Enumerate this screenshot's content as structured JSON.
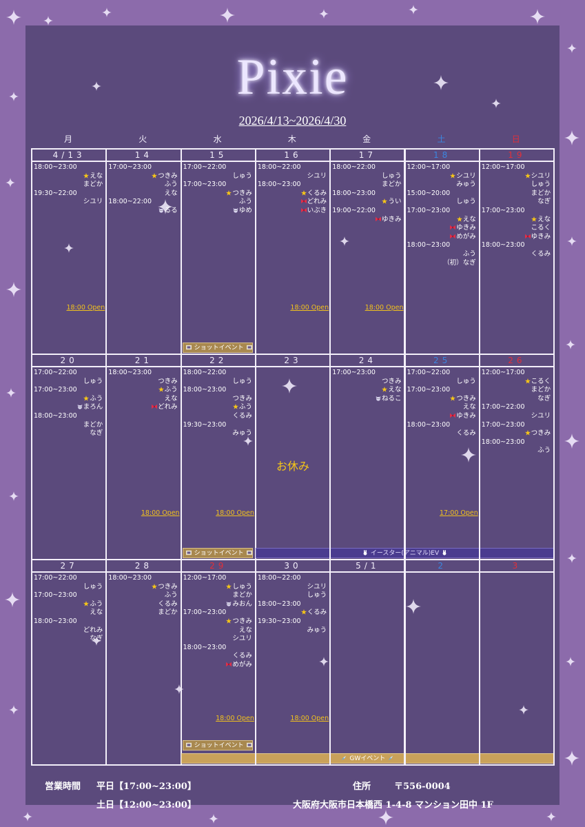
{
  "header": {
    "title": "Pixie",
    "period": "2026/4/13~2026/4/30"
  },
  "weekdays": [
    {
      "label": "月"
    },
    {
      "label": "火"
    },
    {
      "label": "水"
    },
    {
      "label": "木"
    },
    {
      "label": "金"
    },
    {
      "label": "土",
      "color": "#3b86e0"
    },
    {
      "label": "日",
      "color": "#e0303a"
    }
  ],
  "weeks": [
    {
      "days": [
        {
          "label": "4/13",
          "shifts": [
            {
              "time": "18:00~23:00",
              "staff": [
                {
                  "name": "えな",
                  "icon": "star"
                },
                {
                  "name": "まどか"
                }
              ]
            },
            {
              "time": "19:30~22:00",
              "staff": [
                {
                  "name": "シユリ"
                }
              ]
            }
          ],
          "open": "18:00 Open"
        },
        {
          "label": "14",
          "shifts": [
            {
              "time": "17:00~23:00",
              "staff": [
                {
                  "name": "つきみ",
                  "icon": "star"
                },
                {
                  "name": "ふう"
                },
                {
                  "name": "えな"
                }
              ]
            },
            {
              "time": "18:00~22:00",
              "staff": [
                {
                  "name": "るる",
                  "icon": "cat"
                }
              ]
            }
          ]
        },
        {
          "label": "15",
          "shifts": [
            {
              "time": "17:00~22:00",
              "staff": [
                {
                  "name": "しゅう"
                }
              ]
            },
            {
              "time": "17:00~23:00",
              "staff": [
                {
                  "name": "つきみ",
                  "icon": "star"
                },
                {
                  "name": "ふう"
                },
                {
                  "name": "ゆめ",
                  "icon": "cat"
                }
              ]
            }
          ],
          "event": {
            "label": "ショットイベント",
            "style": "shot"
          }
        },
        {
          "label": "16",
          "shifts": [
            {
              "time": "18:00~22:00",
              "staff": [
                {
                  "name": "シユリ"
                }
              ]
            },
            {
              "time": "18:00~23:00",
              "staff": [
                {
                  "name": "くるみ",
                  "icon": "star"
                },
                {
                  "name": "どれみ",
                  "icon": "ribbon"
                },
                {
                  "name": "いぶき",
                  "icon": "ribbon"
                }
              ]
            }
          ],
          "open": "18:00 Open"
        },
        {
          "label": "17",
          "shifts": [
            {
              "time": "18:00~22:00",
              "staff": [
                {
                  "name": "しゅう"
                },
                {
                  "name": "まどか"
                }
              ]
            },
            {
              "time": "18:00~23:00",
              "staff": [
                {
                  "name": "うい",
                  "icon": "star"
                }
              ]
            },
            {
              "time": "19:00~22:00",
              "staff": [
                {
                  "name": "ゆきみ",
                  "icon": "ribbon"
                }
              ]
            }
          ],
          "open": "18:00 Open"
        },
        {
          "label": "18",
          "color": "#3b86e0",
          "shifts": [
            {
              "time": "12:00~17:00",
              "staff": [
                {
                  "name": "シユリ",
                  "icon": "star"
                },
                {
                  "name": "みゅう"
                }
              ]
            },
            {
              "time": "15:00~20:00",
              "staff": [
                {
                  "name": "しゅう"
                }
              ]
            },
            {
              "time": "17:00~23:00",
              "staff": [
                {
                  "name": "えな",
                  "icon": "star"
                },
                {
                  "name": "ゆきみ",
                  "icon": "ribbon"
                },
                {
                  "name": "めがみ",
                  "icon": "ribbon"
                }
              ]
            },
            {
              "time": "18:00~23:00",
              "staff": [
                {
                  "name": "ふう"
                },
                {
                  "name": "（初）なぎ"
                }
              ]
            }
          ]
        },
        {
          "label": "19",
          "color": "#e0303a",
          "shifts": [
            {
              "time": "12:00~17:00",
              "staff": [
                {
                  "name": "シユリ",
                  "icon": "star"
                },
                {
                  "name": "しゅう"
                },
                {
                  "name": "まどか"
                },
                {
                  "name": "なぎ"
                }
              ]
            },
            {
              "time": "17:00~23:00",
              "staff": [
                {
                  "name": "えな",
                  "icon": "star"
                },
                {
                  "name": "こるく"
                },
                {
                  "name": "ゆきみ",
                  "icon": "ribbon"
                }
              ]
            },
            {
              "time": "18:00~23:00",
              "staff": [
                {
                  "name": "くるみ"
                }
              ]
            }
          ]
        }
      ]
    },
    {
      "days": [
        {
          "label": "20",
          "shifts": [
            {
              "time": "17:00~22:00",
              "staff": [
                {
                  "name": "しゅう"
                }
              ]
            },
            {
              "time": "17:00~23:00",
              "staff": [
                {
                  "name": "ふう",
                  "icon": "star"
                },
                {
                  "name": "まろん",
                  "icon": "cat"
                }
              ]
            },
            {
              "time": "18:00~23:00",
              "staff": [
                {
                  "name": "まどか"
                },
                {
                  "name": "なぎ"
                }
              ]
            }
          ]
        },
        {
          "label": "21",
          "shifts": [
            {
              "time": "18:00~23:00",
              "staff": [
                {
                  "name": "つきみ"
                },
                {
                  "name": "ふう",
                  "icon": "star"
                },
                {
                  "name": "えな"
                },
                {
                  "name": "どれみ",
                  "icon": "ribbon"
                }
              ]
            }
          ],
          "open": "18:00 Open"
        },
        {
          "label": "22",
          "shifts": [
            {
              "time": "18:00~22:00",
              "staff": [
                {
                  "name": "しゅう"
                }
              ]
            },
            {
              "time": "18:00~23:00",
              "staff": [
                {
                  "name": "つきみ"
                },
                {
                  "name": "ふう",
                  "icon": "star"
                },
                {
                  "name": "くるみ"
                }
              ]
            },
            {
              "time": "19:30~23:00",
              "staff": [
                {
                  "name": "みゅう"
                }
              ]
            }
          ],
          "open": "18:00 Open",
          "event": {
            "label": "ショットイベント",
            "style": "shot"
          }
        },
        {
          "label": "23",
          "closed": "お休み",
          "event": {
            "label": "イースター(アニマル)EV",
            "style": "easter",
            "to_week_end": true
          }
        },
        {
          "label": "24",
          "shifts": [
            {
              "time": "17:00~23:00",
              "staff": [
                {
                  "name": "つきみ"
                },
                {
                  "name": "えな",
                  "icon": "star"
                },
                {
                  "name": "ねるこ",
                  "icon": "cat"
                }
              ]
            }
          ]
        },
        {
          "label": "25",
          "color": "#3b86e0",
          "shifts": [
            {
              "time": "17:00~22:00",
              "staff": [
                {
                  "name": "しゅう"
                }
              ]
            },
            {
              "time": "17:00~23:00",
              "staff": [
                {
                  "name": "つきみ",
                  "icon": "star"
                },
                {
                  "name": "えな"
                },
                {
                  "name": "ゆきみ",
                  "icon": "ribbon"
                }
              ]
            },
            {
              "time": "18:00~23:00",
              "staff": [
                {
                  "name": "くるみ"
                }
              ]
            }
          ],
          "open": "17:00 Open"
        },
        {
          "label": "26",
          "color": "#e0303a",
          "shifts": [
            {
              "time": "12:00~17:00",
              "staff": [
                {
                  "name": "こるく",
                  "icon": "star"
                },
                {
                  "name": "まどか"
                },
                {
                  "name": "なぎ"
                }
              ]
            },
            {
              "time": "17:00~22:00",
              "staff": [
                {
                  "name": "シユリ"
                }
              ]
            },
            {
              "time": "17:00~23:00",
              "staff": [
                {
                  "name": "つきみ",
                  "icon": "star"
                }
              ]
            },
            {
              "time": "18:00~23:00",
              "staff": [
                {
                  "name": "ふう"
                }
              ]
            }
          ]
        }
      ]
    },
    {
      "days": [
        {
          "label": "27",
          "shifts": [
            {
              "time": "17:00~22:00",
              "staff": [
                {
                  "name": "しゅう"
                }
              ]
            },
            {
              "time": "17:00~23:00",
              "staff": [
                {
                  "name": "ふう",
                  "icon": "star"
                },
                {
                  "name": "えな"
                }
              ]
            },
            {
              "time": "18:00~23:00",
              "staff": [
                {
                  "name": "どれみ"
                },
                {
                  "name": "なぎ"
                }
              ]
            }
          ]
        },
        {
          "label": "28",
          "shifts": [
            {
              "time": "18:00~23:00",
              "staff": [
                {
                  "name": "つきみ",
                  "icon": "star"
                },
                {
                  "name": "ふう"
                },
                {
                  "name": "くるみ"
                },
                {
                  "name": "まどか"
                }
              ]
            }
          ]
        },
        {
          "label": "29",
          "color": "#e0303a",
          "shifts": [
            {
              "time": "12:00~17:00",
              "staff": [
                {
                  "name": "しゅう",
                  "icon": "star"
                },
                {
                  "name": "まどか"
                },
                {
                  "name": "みおん",
                  "icon": "cat"
                }
              ]
            },
            {
              "time": "17:00~23:00",
              "staff": [
                {
                  "name": "つきみ",
                  "icon": "star"
                },
                {
                  "name": "えな"
                },
                {
                  "name": "シユリ"
                }
              ]
            },
            {
              "time": "18:00~23:00",
              "staff": [
                {
                  "name": "くるみ"
                },
                {
                  "name": "めがみ",
                  "icon": "ribbon"
                }
              ]
            }
          ],
          "open": "18:00 Open",
          "event": {
            "label": "ショットイベント",
            "style": "shot"
          },
          "banner": {
            "label": "GWイベント",
            "style": "gw",
            "to_week_end": true
          }
        },
        {
          "label": "30",
          "shifts": [
            {
              "time": "18:00~22:00",
              "staff": [
                {
                  "name": "シユリ"
                },
                {
                  "name": "しゅう"
                }
              ]
            },
            {
              "time": "18:00~23:00",
              "staff": [
                {
                  "name": "くるみ",
                  "icon": "star"
                }
              ]
            },
            {
              "time": "19:30~23:00",
              "staff": [
                {
                  "name": "みゅう"
                }
              ]
            }
          ],
          "open": "18:00 Open"
        },
        {
          "label": "5/1"
        },
        {
          "label": "2",
          "color": "#3b86e0"
        },
        {
          "label": "3",
          "color": "#e0303a"
        }
      ]
    }
  ],
  "footer": {
    "hours_label": "営業時間",
    "weekday_hours": "平日【17:00~23:00】",
    "weekend_hours": "土日【12:00~23:00】",
    "address_label": "住所",
    "postal_code": "〒556-0004",
    "address": "大阪府大阪市日本橋西 1-4-8 マンション田中 1F"
  }
}
